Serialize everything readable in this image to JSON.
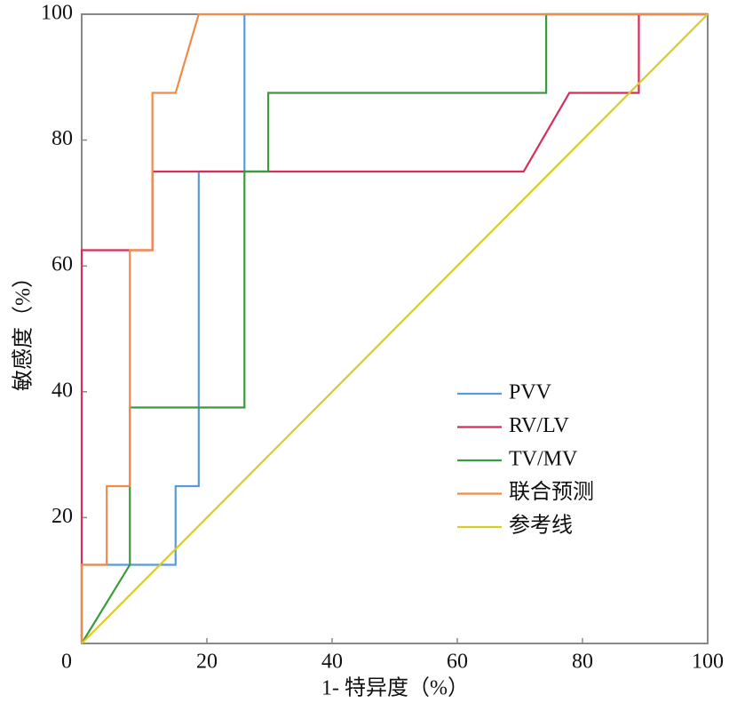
{
  "chart_data": {
    "type": "line",
    "xlabel": "1- 特异度（%）",
    "ylabel": "敏感度（%）",
    "xlim": [
      0,
      100
    ],
    "ylim": [
      0,
      100
    ],
    "xticks": [
      0,
      20,
      40,
      60,
      80,
      100
    ],
    "yticks": [
      20,
      40,
      60,
      80,
      100
    ],
    "legend": "lower right",
    "series": [
      {
        "name": "PVV",
        "color": "#5b9bd5",
        "x": [
          0,
          0,
          15,
          15,
          18.7,
          18.7,
          26,
          26,
          100
        ],
        "values": [
          0,
          12.5,
          12.5,
          25,
          25,
          75,
          75,
          100,
          100
        ]
      },
      {
        "name": "RV/LV",
        "color": "#d42f5b",
        "x": [
          0,
          0,
          0,
          11.3,
          11.3,
          70.6,
          77.9,
          89,
          89,
          100
        ],
        "values": [
          0,
          12.5,
          62.5,
          62.5,
          75,
          75,
          87.5,
          87.5,
          100,
          100
        ]
      },
      {
        "name": "TV/MV",
        "color": "#3a9a3e",
        "x": [
          0,
          7.7,
          7.7,
          26,
          26,
          29.8,
          29.8,
          74.2,
          74.2,
          100
        ],
        "values": [
          0,
          12.5,
          37.5,
          37.5,
          75,
          75,
          87.5,
          87.5,
          100,
          100
        ]
      },
      {
        "name": "联合预测",
        "color": "#f08a4b",
        "x": [
          0,
          0,
          4,
          4,
          7.7,
          7.7,
          11.3,
          11.3,
          15,
          18.7,
          100
        ],
        "values": [
          0,
          12.5,
          12.5,
          25,
          25,
          62.5,
          62.5,
          87.5,
          87.5,
          100,
          100
        ]
      },
      {
        "name": "参考线",
        "color": "#d9cc22",
        "x": [
          0,
          100
        ],
        "values": [
          0,
          100
        ]
      }
    ]
  }
}
